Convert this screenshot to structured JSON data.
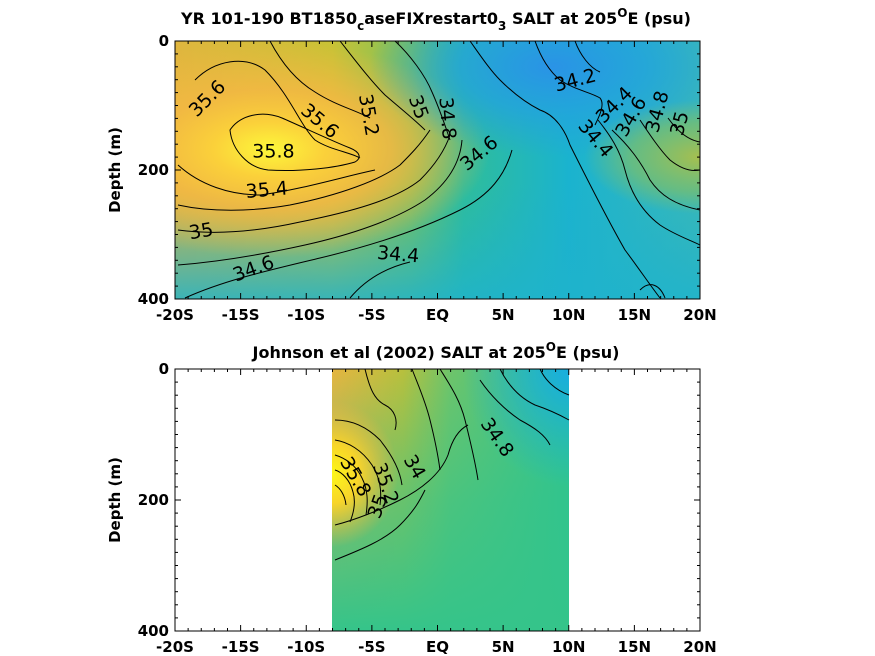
{
  "chart_data": [
    {
      "type": "contour",
      "title_parts": [
        "YR 101-190 BT1850",
        "c",
        "aseFIXrestart0",
        "3",
        " SALT at 205",
        "O",
        "E (psu)"
      ],
      "ylabel": "Depth (m)",
      "xlim": [
        -20,
        20
      ],
      "ylim": [
        0,
        400
      ],
      "y_reversed": true,
      "x_ticks": [
        -20,
        -15,
        -10,
        -5,
        0,
        5,
        10,
        15,
        20
      ],
      "x_tick_labels": [
        "-20S",
        "-15S",
        "-10S",
        "-5S",
        "EQ",
        "5N",
        "10N",
        "15N",
        "20N"
      ],
      "y_ticks": [
        0,
        200,
        400
      ],
      "y_tick_labels": [
        "0",
        "200",
        "400"
      ],
      "data_x_range": [
        -20,
        20
      ],
      "contour_labels": [
        {
          "text": "35.6",
          "x": -17.5,
          "y": 90,
          "angle": -45
        },
        {
          "text": "35.6",
          "x": -9,
          "y": 125,
          "angle": 40
        },
        {
          "text": "35.8",
          "x": -12.5,
          "y": 172,
          "angle": 0
        },
        {
          "text": "35.4",
          "x": -13,
          "y": 232,
          "angle": -5
        },
        {
          "text": "35",
          "x": -18,
          "y": 296,
          "angle": -10
        },
        {
          "text": "34.6",
          "x": -14,
          "y": 354,
          "angle": -20
        },
        {
          "text": "35.2",
          "x": -5.3,
          "y": 115,
          "angle": 80
        },
        {
          "text": "35",
          "x": -1.5,
          "y": 103,
          "angle": 70
        },
        {
          "text": "34.8",
          "x": 0.7,
          "y": 120,
          "angle": 85
        },
        {
          "text": "34.4",
          "x": -3,
          "y": 332,
          "angle": 5
        },
        {
          "text": "34.6",
          "x": 3.2,
          "y": 175,
          "angle": -40
        },
        {
          "text": "34.2",
          "x": 10.5,
          "y": 62,
          "angle": -15
        },
        {
          "text": "34.4",
          "x": 12,
          "y": 152,
          "angle": 50
        },
        {
          "text": "34.4",
          "x": 13.5,
          "y": 100,
          "angle": -45
        },
        {
          "text": "34.6",
          "x": 14.8,
          "y": 118,
          "angle": -60
        },
        {
          "text": "34.8",
          "x": 16.8,
          "y": 110,
          "angle": -75
        },
        {
          "text": "35",
          "x": 18.5,
          "y": 128,
          "angle": -75
        }
      ]
    },
    {
      "type": "contour",
      "title_parts": [
        "Johnson et al (2002) SALT at 205",
        "O",
        "E (psu)"
      ],
      "ylabel": "Depth (m)",
      "xlim": [
        -20,
        20
      ],
      "ylim": [
        0,
        400
      ],
      "y_reversed": true,
      "x_ticks": [
        -20,
        -15,
        -10,
        -5,
        0,
        5,
        10,
        15,
        20
      ],
      "x_tick_labels": [
        "-20S",
        "-15S",
        "-10S",
        "-5S",
        "EQ",
        "5N",
        "10N",
        "15N",
        "20N"
      ],
      "y_ticks": [
        0,
        200,
        400
      ],
      "y_tick_labels": [
        "0",
        "200",
        "400"
      ],
      "data_x_range": [
        -8,
        10
      ],
      "contour_labels": [
        {
          "text": "34.8",
          "x": 4.5,
          "y": 105,
          "angle": 55
        },
        {
          "text": "34",
          "x": -1.8,
          "y": 150,
          "angle": 60
        },
        {
          "text": "35.2",
          "x": -4,
          "y": 175,
          "angle": 70
        },
        {
          "text": "35",
          "x": -4.5,
          "y": 210,
          "angle": -70
        },
        {
          "text": "35.8",
          "x": -6.3,
          "y": 165,
          "angle": 60
        }
      ]
    }
  ]
}
